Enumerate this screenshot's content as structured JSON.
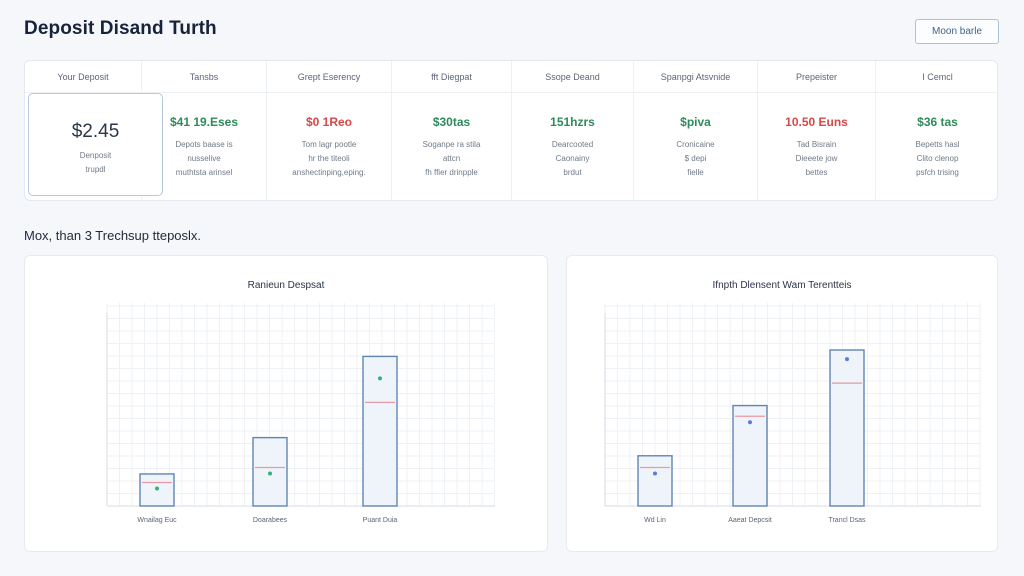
{
  "header": {
    "title": "Deposit Disand Turth",
    "button_label": "Moon barle"
  },
  "cards": [
    {
      "header": "Your Deposit",
      "value": "$2.45",
      "description": "Denposit\ntrupdl",
      "selected": true
    },
    {
      "header": "Tansbs",
      "value": "$41 19.Eses",
      "value_color": "#2f8a5c",
      "description": "Depots baase is\nnusselive\nmuthtsta arinsel"
    },
    {
      "header": "Grept Eserency",
      "value": "$0 1Reo",
      "value_color": "#d64848",
      "description": "Tom lagr pootle\nhr the titeoli\nanshectinping,eping."
    },
    {
      "header": "fft Diegpat",
      "value": "$30tas",
      "value_color": "#2f8a5c",
      "description": "Soganpe ra stila\nattcn\nfh ffier drinpple"
    },
    {
      "header": "Ssope Deand",
      "value": "151hzrs",
      "value_color": "#2f8a5c",
      "description": "Dearcooted\nCaonainy\nbrdut"
    },
    {
      "header": "Spanpgi Atsvnide",
      "value": "$piva",
      "value_color": "#2f8a5c",
      "description": "Cronicaine\n$ depi\nfielle"
    },
    {
      "header": "Prepeister",
      "value": "10.50 Euns",
      "value_color": "#d64848",
      "description": "Tad Bisrain\nDieeete jow\nbettes"
    },
    {
      "header": "I Cemcl",
      "value": "$36 tas",
      "value_color": "#2f8a5c",
      "description": "Bepetts hasl\nClito clenop\npsfch trising"
    }
  ],
  "section": {
    "title": "Mox, than 3 Trechsup tteposlx."
  },
  "charts": [
    {
      "title": "Ranieun Despsat",
      "type": "bar",
      "categories": [
        "Wnailag Euc",
        "Doarabees",
        "Puant Duia"
      ],
      "values": [
        30,
        64,
        140
      ],
      "inner_marker": [
        22,
        36,
        97
      ],
      "dot_color": "#32b27a",
      "line_color": "#e79aa2",
      "ylim": [
        0,
        190
      ]
    },
    {
      "title": "Ifnpth Dlensent Wam Terentteis",
      "type": "bar",
      "categories": [
        "Wd Lin",
        "Aaeat Depcsit",
        "Trancl Dsas"
      ],
      "values": [
        47,
        94,
        146
      ],
      "inner_marker": [
        36,
        84,
        115
      ],
      "dot_color": "#5b7cdc",
      "line_color": "#e79aa2",
      "ylim": [
        0,
        190
      ]
    }
  ]
}
